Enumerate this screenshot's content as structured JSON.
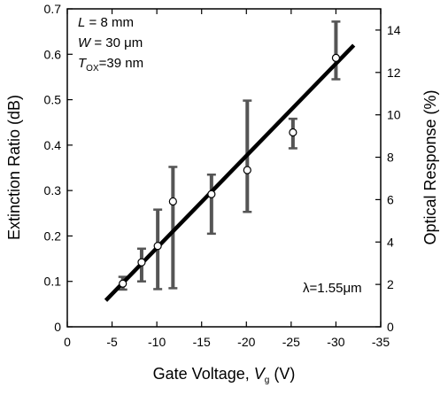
{
  "chart_data": {
    "type": "scatter",
    "xlabel": "Gate Voltage, ",
    "xlabel_var": "V",
    "xlabel_var_sub": "g",
    "xlabel_unit": " (V)",
    "ylabel_left": "Extinction Ratio (dB)",
    "ylabel_right": "Optical Response (%)",
    "xlim": [
      0,
      -35
    ],
    "ylim_left": [
      0,
      0.7
    ],
    "ylim_right": [
      0,
      15
    ],
    "x_ticks": [
      0,
      -5,
      -10,
      -15,
      -20,
      -25,
      -30,
      -35
    ],
    "x_tick_labels": [
      "0",
      "-5",
      "-10",
      "-15",
      "-20",
      "-25",
      "-30",
      "-35"
    ],
    "y_left_ticks": [
      0,
      0.1,
      0.2,
      0.3,
      0.4,
      0.5,
      0.6,
      0.7
    ],
    "y_left_tick_labels": [
      "0",
      "0.1",
      "0.2",
      "0.3",
      "0.4",
      "0.5",
      "0.6",
      "0.7"
    ],
    "y_right_ticks": [
      0,
      2,
      4,
      6,
      8,
      10,
      12,
      14
    ],
    "y_right_tick_labels": [
      "0",
      "2",
      "4",
      "6",
      "8",
      "10",
      "12",
      "14"
    ],
    "points": [
      {
        "x": -6.2,
        "y": 0.095,
        "y_low": 0.082,
        "y_high": 0.11
      },
      {
        "x": -8.3,
        "y": 0.142,
        "y_low": 0.1,
        "y_high": 0.172
      },
      {
        "x": -10.1,
        "y": 0.178,
        "y_low": 0.083,
        "y_high": 0.258
      },
      {
        "x": -11.8,
        "y": 0.276,
        "y_low": 0.085,
        "y_high": 0.352
      },
      {
        "x": -16.1,
        "y": 0.292,
        "y_low": 0.205,
        "y_high": 0.335
      },
      {
        "x": -20.1,
        "y": 0.345,
        "y_low": 0.253,
        "y_high": 0.498
      },
      {
        "x": -25.2,
        "y": 0.428,
        "y_low": 0.393,
        "y_high": 0.458
      },
      {
        "x": -30.0,
        "y": 0.592,
        "y_low": 0.545,
        "y_high": 0.672
      }
    ],
    "fit_line": {
      "x": [
        -4.3,
        -32.0
      ],
      "y": [
        0.058,
        0.62
      ]
    },
    "annotations": {
      "L_var": "L",
      "L_val": " = 8 mm",
      "W_var": "W",
      "W_val": " = 30 μm",
      "T_var": "T",
      "T_sub": "OX",
      "T_val": "=39 nm",
      "lambda": "λ=1.55μm"
    },
    "colors": {
      "errorbar": "#555555",
      "fit": "#000000",
      "marker_fill": "#ffffff"
    },
    "grid": false
  }
}
